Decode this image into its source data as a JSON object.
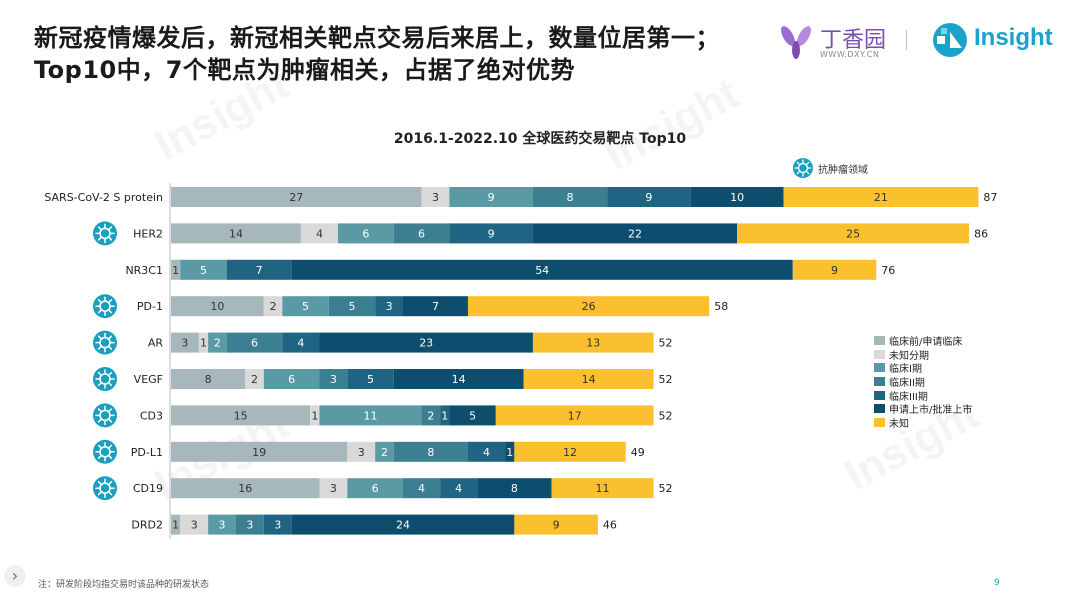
{
  "headline": "新冠疫情爆发后，新冠相关靶点交易后来居上，数量位居第一；Top10中，7个靶点为肿瘤相关，占据了绝对优势",
  "logos": {
    "dxy_name": "丁香园",
    "dxy_url": "WWW.DXY.CN",
    "insight_name": "Insight"
  },
  "footnote": "注：研发阶段均指交易时该品种的研发状态",
  "page_number": "9",
  "colors": {
    "stages": [
      "#a7b8bc",
      "#d9d9d9",
      "#5a9aa4",
      "#3c7f92",
      "#1f6482",
      "#0d4d6e",
      "#fbc02d"
    ],
    "oncology_icon": "#1a9fbf"
  },
  "chart_data": {
    "type": "bar",
    "orientation": "horizontal",
    "stacked": true,
    "title": "2016.1-2022.10 全球医药交易靶点 Top10",
    "oncology_legend_label": "抗肿瘤领域",
    "categories": [
      "SARS-CoV-2 S protein",
      "HER2",
      "NR3C1",
      "PD-1",
      "AR",
      "VEGF",
      "CD3",
      "PD-L1",
      "CD19",
      "DRD2"
    ],
    "oncology": [
      false,
      true,
      false,
      true,
      true,
      true,
      true,
      true,
      true,
      false
    ],
    "totals": [
      87,
      86,
      76,
      58,
      52,
      52,
      52,
      49,
      52,
      46
    ],
    "series": [
      {
        "name": "临床前/申请临床",
        "values": [
          27,
          14,
          1,
          10,
          3,
          8,
          15,
          19,
          16,
          1
        ]
      },
      {
        "name": "未知分期",
        "values": [
          3,
          4,
          0,
          2,
          1,
          2,
          1,
          3,
          3,
          3
        ]
      },
      {
        "name": "临床I期",
        "values": [
          9,
          6,
          5,
          5,
          2,
          6,
          11,
          2,
          6,
          3
        ]
      },
      {
        "name": "临床II期",
        "values": [
          8,
          6,
          0,
          5,
          6,
          3,
          2,
          8,
          4,
          3
        ]
      },
      {
        "name": "临床III期",
        "values": [
          9,
          9,
          7,
          3,
          4,
          5,
          1,
          4,
          4,
          3
        ]
      },
      {
        "name": "申请上市/批准上市",
        "values": [
          10,
          22,
          54,
          7,
          23,
          14,
          5,
          1,
          8,
          24
        ]
      },
      {
        "name": "未知",
        "values": [
          21,
          25,
          9,
          26,
          13,
          14,
          17,
          12,
          11,
          9
        ]
      }
    ],
    "xlim": [
      0,
      87
    ],
    "grid": false,
    "legend_position": "right"
  }
}
